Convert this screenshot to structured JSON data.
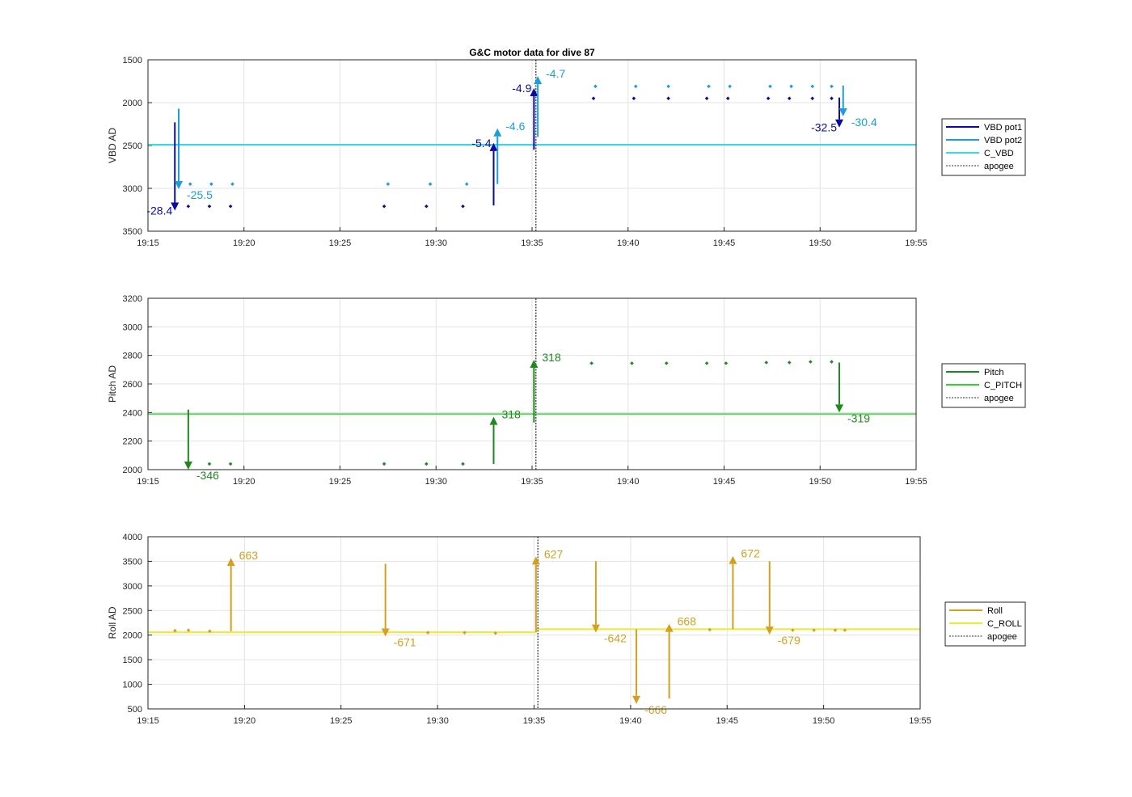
{
  "chart_data": [
    {
      "type": "line",
      "title": "G&C motor data for dive 87",
      "ylabel": "VBD AD",
      "xlim": [
        "19:15",
        "19:55"
      ],
      "ylim": [
        1500,
        3500
      ],
      "y_reversed": true,
      "grid": true,
      "legend_position": "right",
      "x_ticks": [
        "19:15",
        "19:20",
        "19:25",
        "19:30",
        "19:35",
        "19:40",
        "19:45",
        "19:50",
        "19:55"
      ],
      "y_ticks": [
        "1500",
        "2000",
        "2500",
        "3000",
        "3500"
      ],
      "apogee_x": "19:35.2",
      "legend": [
        {
          "label": "VBD pot1",
          "color": "#0a0aa8",
          "dash": false
        },
        {
          "label": "VBD pot2",
          "color": "#1a9fd9",
          "dash": false
        },
        {
          "label": "C_VBD",
          "color": "#38d8e2",
          "dash": false
        },
        {
          "label": "apogee",
          "color": "#555555",
          "dash": true
        }
      ],
      "hlines": [
        {
          "y": 2490,
          "color": "#38d8e2",
          "width": 2
        }
      ],
      "series": [
        {
          "color": "#0a0aa8",
          "points": [
            [
              "19:17.1",
              3210
            ],
            [
              "19:18.2",
              3210
            ],
            [
              "19:19.3",
              3210
            ],
            [
              "19:27.3",
              3210
            ],
            [
              "19:29.5",
              3210
            ],
            [
              "19:31.4",
              3210
            ],
            [
              "19:38.2",
              1950
            ],
            [
              "19:40.3",
              1950
            ],
            [
              "19:42.1",
              1950
            ],
            [
              "19:44.1",
              1950
            ],
            [
              "19:45.2",
              1950
            ],
            [
              "19:47.3",
              1950
            ],
            [
              "19:48.4",
              1950
            ],
            [
              "19:49.6",
              1950
            ],
            [
              "19:50.6",
              1950
            ]
          ]
        },
        {
          "color": "#1a9fd9",
          "points": [
            [
              "19:17.2",
              2950
            ],
            [
              "19:18.3",
              2950
            ],
            [
              "19:19.4",
              2950
            ],
            [
              "19:27.5",
              2950
            ],
            [
              "19:29.7",
              2950
            ],
            [
              "19:31.6",
              2950
            ],
            [
              "19:38.3",
              1810
            ],
            [
              "19:40.4",
              1810
            ],
            [
              "19:42.1",
              1810
            ],
            [
              "19:44.2",
              1810
            ],
            [
              "19:45.3",
              1810
            ],
            [
              "19:47.4",
              1810
            ],
            [
              "19:48.5",
              1810
            ],
            [
              "19:49.6",
              1810
            ],
            [
              "19:50.6",
              1810
            ]
          ]
        }
      ],
      "arrows": [
        {
          "x": "19:16.4",
          "y0": 2230,
          "y1": 3260,
          "color": "#0a0aa8",
          "label": "-28.4",
          "label_side": "left"
        },
        {
          "x": "19:16.6",
          "y0": 2070,
          "y1": 3010,
          "color": "#1a9fd9",
          "label": "-25.5",
          "label_side": "right"
        },
        {
          "x": "19:33.0",
          "y0": 3200,
          "y1": 2470,
          "color": "#0a0aa8",
          "label": "-5.4",
          "label_side": "left"
        },
        {
          "x": "19:33.2",
          "y0": 2950,
          "y1": 2300,
          "color": "#1a9fd9",
          "label": "-4.6",
          "label_side": "right"
        },
        {
          "x": "19:35.1",
          "y0": 2550,
          "y1": 1830,
          "color": "#0a0aa8",
          "label": "-4.9",
          "label_side": "left"
        },
        {
          "x": "19:35.3",
          "y0": 2400,
          "y1": 1690,
          "color": "#1a9fd9",
          "label": "-4.7",
          "label_side": "right"
        },
        {
          "x": "19:51.0",
          "y0": 1940,
          "y1": 2290,
          "color": "#0a0aa8",
          "label": "-32.5",
          "label_side": "left"
        },
        {
          "x": "19:51.2",
          "y0": 1800,
          "y1": 2160,
          "color": "#1a9fd9",
          "label": "-30.4",
          "label_side": "right"
        }
      ]
    },
    {
      "type": "line",
      "title": "",
      "ylabel": "Pitch AD",
      "xlim": [
        "19:15",
        "19:55"
      ],
      "ylim": [
        2000,
        3200
      ],
      "grid": true,
      "legend_position": "right",
      "x_ticks": [
        "19:15",
        "19:20",
        "19:25",
        "19:30",
        "19:35",
        "19:40",
        "19:45",
        "19:50",
        "19:55"
      ],
      "y_ticks": [
        "2000",
        "2200",
        "2400",
        "2600",
        "2800",
        "3000",
        "3200"
      ],
      "apogee_x": "19:35.2",
      "legend": [
        {
          "label": "Pitch",
          "color": "#1e8a1e",
          "dash": false
        },
        {
          "label": "C_PITCH",
          "color": "#30d430",
          "dash": false
        },
        {
          "label": "apogee",
          "color": "#555555",
          "dash": true
        }
      ],
      "hlines": [
        {
          "y": 2390,
          "color": "#30d430",
          "width": 1.5
        }
      ],
      "series": [
        {
          "color": "#1e8a1e",
          "points": [
            [
              "19:18.2",
              2040
            ],
            [
              "19:19.3",
              2040
            ],
            [
              "19:27.3",
              2040
            ],
            [
              "19:29.5",
              2040
            ],
            [
              "19:31.4",
              2040
            ],
            [
              "19:38.1",
              2745
            ],
            [
              "19:40.2",
              2745
            ],
            [
              "19:42.0",
              2745
            ],
            [
              "19:44.1",
              2745
            ],
            [
              "19:45.1",
              2745
            ],
            [
              "19:47.2",
              2750
            ],
            [
              "19:48.4",
              2750
            ],
            [
              "19:49.5",
              2755
            ],
            [
              "19:50.6",
              2755
            ]
          ]
        }
      ],
      "arrows": [
        {
          "x": "19:17.1",
          "y0": 2420,
          "y1": 2000,
          "color": "#1e8a1e",
          "label": "-346",
          "label_side": "right"
        },
        {
          "x": "19:33.0",
          "y0": 2040,
          "y1": 2370,
          "color": "#1e8a1e",
          "label": "318",
          "label_side": "right"
        },
        {
          "x": "19:35.1",
          "y0": 2330,
          "y1": 2770,
          "color": "#1e8a1e",
          "label": "318",
          "label_side": "right"
        },
        {
          "x": "19:51.0",
          "y0": 2750,
          "y1": 2400,
          "color": "#1e8a1e",
          "label": "-319",
          "label_side": "right"
        }
      ]
    },
    {
      "type": "line",
      "title": "",
      "ylabel": "Roll AD",
      "xlim": [
        "19:15",
        "19:55"
      ],
      "ylim": [
        500,
        4000
      ],
      "grid": true,
      "legend_position": "right",
      "x_ticks": [
        "19:15",
        "19:20",
        "19:25",
        "19:30",
        "19:35",
        "19:40",
        "19:45",
        "19:50",
        "19:55"
      ],
      "y_ticks": [
        "500",
        "1000",
        "1500",
        "2000",
        "2500",
        "3000",
        "3500",
        "4000"
      ],
      "apogee_x": "19:35.2",
      "legend": [
        {
          "label": "Roll",
          "color": "#d4a020",
          "dash": false
        },
        {
          "label": "C_ROLL",
          "color": "#f2e830",
          "dash": false
        },
        {
          "label": "apogee",
          "color": "#555555",
          "dash": true
        }
      ],
      "hlines": [],
      "segments": [
        {
          "x0": "19:15",
          "x1": "19:35.1",
          "y": 2060,
          "color": "#f2e830",
          "width": 2
        },
        {
          "x0": "19:35.1",
          "x1": "19:55",
          "y": 2120,
          "color": "#f2e830",
          "width": 2
        }
      ],
      "series": [
        {
          "color": "#d4a020",
          "points": [
            [
              "19:16.4",
              2090
            ],
            [
              "19:17.1",
              2100
            ],
            [
              "19:18.2",
              2080
            ],
            [
              "19:29.5",
              2050
            ],
            [
              "19:31.4",
              2050
            ],
            [
              "19:33.0",
              2040
            ],
            [
              "19:44.1",
              2110
            ],
            [
              "19:48.4",
              2100
            ],
            [
              "19:49.5",
              2100
            ],
            [
              "19:50.6",
              2100
            ],
            [
              "19:51.1",
              2100
            ]
          ]
        }
      ],
      "arrows": [
        {
          "x": "19:19.3",
          "y0": 2080,
          "y1": 3570,
          "color": "#d4a020",
          "label": "663",
          "label_side": "right"
        },
        {
          "x": "19:27.3",
          "y0": 3450,
          "y1": 1970,
          "color": "#d4a020",
          "label": "-671",
          "label_side": "right"
        },
        {
          "x": "19:35.1",
          "y0": 2060,
          "y1": 3600,
          "color": "#d4a020",
          "label": "627",
          "label_side": "right"
        },
        {
          "x": "19:38.2",
          "y0": 3500,
          "y1": 2050,
          "color": "#d4a020",
          "label": "-642",
          "label_side": "right"
        },
        {
          "x": "19:40.3",
          "y0": 2120,
          "y1": 600,
          "color": "#d4a020",
          "label": "-666",
          "label_side": "right"
        },
        {
          "x": "19:42.0",
          "y0": 710,
          "y1": 2230,
          "color": "#d4a020",
          "label": "668",
          "label_side": "right"
        },
        {
          "x": "19:45.3",
          "y0": 2120,
          "y1": 3610,
          "color": "#d4a020",
          "label": "672",
          "label_side": "right"
        },
        {
          "x": "19:47.2",
          "y0": 3500,
          "y1": 2010,
          "color": "#d4a020",
          "label": "-679",
          "label_side": "right"
        }
      ]
    }
  ]
}
